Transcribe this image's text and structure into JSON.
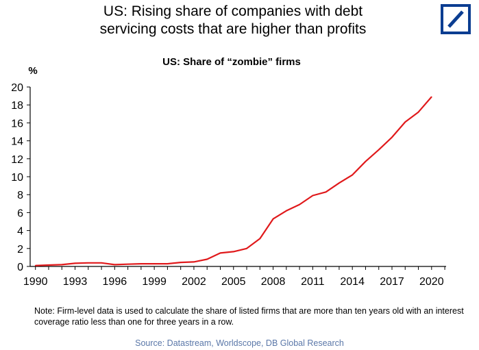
{
  "headline": {
    "line1": "US: Rising share of companies with debt",
    "line2": "servicing costs that are higher than profits"
  },
  "logo_icon": "deutsche-bank-logo-icon",
  "colors": {
    "series": "#e0191b",
    "logo": "#0b3d91",
    "axis": "#000000",
    "source_text": "#5a77a8"
  },
  "chart_data": {
    "type": "line",
    "title": "US: Share of “zombie” firms",
    "ylabel": "%",
    "xlabel": "",
    "xlim": [
      1989.6,
      2021.1
    ],
    "ylim": [
      0,
      20
    ],
    "grid": false,
    "legend": "none",
    "x_ticks": [
      1990,
      1993,
      1996,
      1999,
      2002,
      2005,
      2008,
      2011,
      2014,
      2017,
      2020
    ],
    "y_ticks": [
      0,
      2,
      4,
      6,
      8,
      10,
      12,
      14,
      16,
      18,
      20
    ],
    "series": [
      {
        "x": [
          1990,
          1991,
          1992,
          1993,
          1994,
          1995,
          1996,
          1997,
          1998,
          1999,
          2000,
          2001,
          2002,
          2003,
          2004,
          2005,
          2006,
          2007,
          2008,
          2009,
          2010,
          2011,
          2012,
          2013,
          2014,
          2015,
          2016,
          2017,
          2018,
          2019,
          2020
        ],
        "y": [
          0.1,
          0.15,
          0.2,
          0.35,
          0.4,
          0.4,
          0.2,
          0.25,
          0.3,
          0.3,
          0.3,
          0.45,
          0.5,
          0.8,
          1.5,
          1.65,
          2.0,
          3.1,
          5.3,
          6.2,
          6.9,
          7.9,
          8.3,
          9.3,
          10.2,
          11.7,
          13.0,
          14.4,
          16.1,
          17.2,
          18.9
        ]
      }
    ]
  },
  "note": "Note: Firm-level data is used to calculate the share of listed firms that are more than ten years old with an interest coverage ratio less than one for three years in a row.",
  "source": "Source: Datastream, Worldscope, DB Global Research"
}
